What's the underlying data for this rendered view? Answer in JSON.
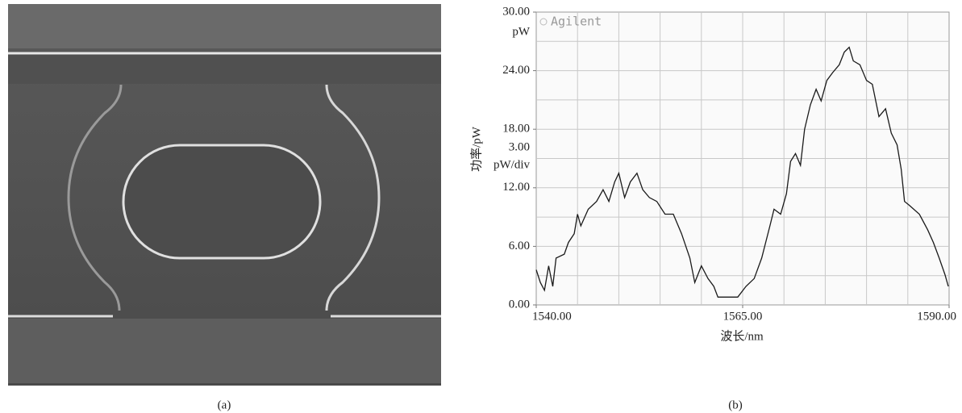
{
  "panel_a_caption": "(a)",
  "chart_data": {
    "type": "line",
    "caption": "(b)",
    "x_label": "波长/nm",
    "y_label": "功率/pW",
    "annotations": [
      "Agilent",
      "pW",
      "3.00",
      "pW/div"
    ],
    "x": [
      1540,
      1540.5,
      1541,
      1541.5,
      1542,
      1542.4,
      1543.4,
      1543.9,
      1544.6,
      1545,
      1545.4,
      1546.3,
      1547.3,
      1548.1,
      1548.8,
      1549.5,
      1550,
      1550.7,
      1551.4,
      1552.2,
      1552.9,
      1553.7,
      1554.6,
      1555.6,
      1556.6,
      1557.6,
      1558.6,
      1559.2,
      1560,
      1560.8,
      1561.5,
      1562,
      1563,
      1564.4,
      1565.4,
      1566.4,
      1567.3,
      1568.3,
      1568.8,
      1569.6,
      1570.3,
      1570.8,
      1571.4,
      1572,
      1572.5,
      1573.2,
      1573.9,
      1574.5,
      1575.2,
      1575.9,
      1576.7,
      1577.3,
      1577.9,
      1578.4,
      1579.2,
      1580,
      1580.7,
      1581.5,
      1582.3,
      1583,
      1583.7,
      1584.2,
      1584.6,
      1585.2,
      1586.4,
      1587.4,
      1588.1,
      1588.8,
      1589.5,
      1589.9
    ],
    "values": [
      3.6,
      2.3,
      1.5,
      4.0,
      1.9,
      4.8,
      5.2,
      6.4,
      7.3,
      9.3,
      8.1,
      9.8,
      10.6,
      11.8,
      10.6,
      12.6,
      13.5,
      11,
      12.6,
      13.5,
      11.8,
      11,
      10.6,
      9.3,
      9.3,
      7.3,
      4.8,
      2.3,
      4.0,
      2.7,
      1.9,
      0.8,
      0.8,
      0.8,
      1.9,
      2.7,
      4.8,
      8.1,
      9.8,
      9.3,
      11.4,
      14.7,
      15.5,
      14.3,
      18,
      20.5,
      22.1,
      20.9,
      23,
      23.8,
      24.6,
      25.9,
      26.4,
      25,
      24.6,
      23,
      22.6,
      19.3,
      20.1,
      17.6,
      16.4,
      13.9,
      10.6,
      10.2,
      9.3,
      7.7,
      6.4,
      4.8,
      3.1,
      1.9
    ],
    "color": "#1a1a1a",
    "xlim": [
      1540,
      1590
    ],
    "ylim": [
      0,
      30
    ],
    "xticks": [
      {
        "value": 1540,
        "label": "1540.00"
      },
      {
        "value": 1565,
        "label": "1565.00"
      },
      {
        "value": 1590,
        "label": "1590.00"
      }
    ],
    "yticks": [
      {
        "value": 0,
        "label": "0.00"
      },
      {
        "value": 6,
        "label": "6.00"
      },
      {
        "value": 12,
        "label": "12.00"
      },
      {
        "value": 18,
        "label": "18.00"
      },
      {
        "value": 24,
        "label": "24.00"
      },
      {
        "value": 30,
        "label": "30.00"
      }
    ],
    "xgrid": [
      1545,
      1550,
      1555,
      1560,
      1565,
      1570,
      1575,
      1580,
      1585
    ],
    "ygrid": [
      3,
      6,
      9,
      12,
      15,
      18,
      21,
      24,
      27
    ],
    "grid": true
  }
}
